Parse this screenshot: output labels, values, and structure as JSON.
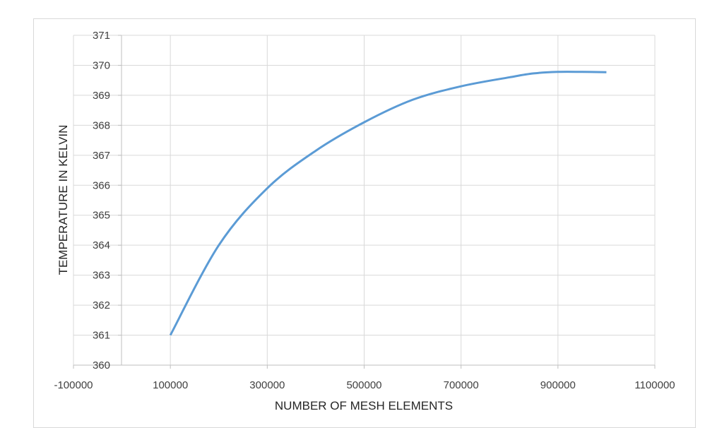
{
  "chart_data": {
    "type": "line",
    "title": "",
    "xlabel": "NUMBER OF MESH ELEMENTS",
    "ylabel": "TEMPERATURE IN KELVIN",
    "xlim": [
      -100000,
      1100000
    ],
    "ylim": [
      360,
      371
    ],
    "x_ticks": [
      -100000,
      100000,
      300000,
      500000,
      700000,
      900000,
      1100000
    ],
    "x_tick_labels": [
      "-100000",
      "100000",
      "300000",
      "500000",
      "700000",
      "900000",
      "1100000"
    ],
    "y_ticks": [
      360,
      361,
      362,
      363,
      364,
      365,
      366,
      367,
      368,
      369,
      370,
      371
    ],
    "y_tick_labels": [
      "360",
      "361",
      "362",
      "363",
      "364",
      "365",
      "366",
      "367",
      "368",
      "369",
      "370",
      "371"
    ],
    "grid": true,
    "legend": "none",
    "series": [
      {
        "color": "#5b9bd5",
        "smooth": true,
        "x": [
          100000,
          200000,
          300000,
          400000,
          500000,
          600000,
          700000,
          800000,
          850000,
          900000,
          950000,
          1000000
        ],
        "y": [
          361.0,
          364.0,
          365.9,
          367.15,
          368.1,
          368.85,
          369.3,
          369.6,
          369.73,
          369.78,
          369.78,
          369.77
        ]
      }
    ]
  }
}
